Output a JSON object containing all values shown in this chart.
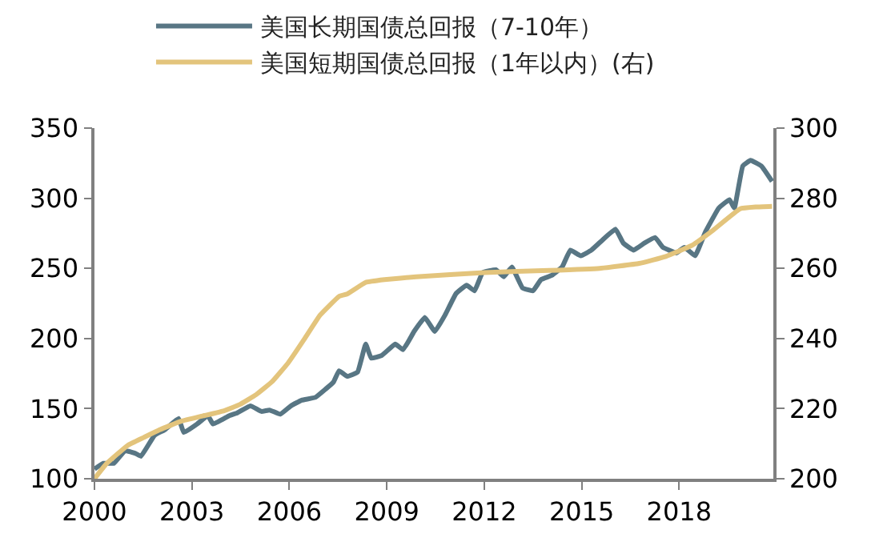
{
  "chart_data": {
    "type": "line",
    "legend": "top",
    "marker": "none",
    "line_style": "solid",
    "xlim": [
      2000,
      2020.9
    ],
    "xticks": [
      2000,
      2003,
      2006,
      2009,
      2012,
      2015,
      2018
    ],
    "ylim": [
      100,
      350
    ],
    "yticks": [
      100,
      150,
      200,
      250,
      300,
      350
    ],
    "y2lim": [
      200,
      300
    ],
    "y2ticks": [
      200,
      220,
      240,
      260,
      280,
      300
    ],
    "series": [
      {
        "name": "美国长期国债总回报（7-10年）",
        "color": "#587684",
        "x": [
          2000,
          2000.28,
          2000.6,
          2000.94,
          2001.27,
          2001.43,
          2001.85,
          2002.17,
          2002.59,
          2002.75,
          2003.16,
          2003.49,
          2003.65,
          2004.15,
          2004.4,
          2004.8,
          2005.14,
          2005.39,
          2005.72,
          2006.05,
          2006.38,
          2006.8,
          2007.12,
          2007.36,
          2007.53,
          2007.78,
          2008.1,
          2008.35,
          2008.52,
          2008.85,
          2009.26,
          2009.5,
          2009.84,
          2010.17,
          2010.48,
          2010.8,
          2011.13,
          2011.46,
          2011.7,
          2011.95,
          2012.36,
          2012.6,
          2012.85,
          2013.18,
          2013.5,
          2013.75,
          2014.08,
          2014.4,
          2014.65,
          2014.97,
          2015.3,
          2015.63,
          2016.04,
          2016.28,
          2016.6,
          2016.93,
          2017.26,
          2017.5,
          2017.92,
          2018.16,
          2018.49,
          2018.81,
          2019.22,
          2019.55,
          2019.7,
          2019.96,
          2020.2,
          2020.53,
          2020.86
        ],
        "values": [
          107,
          111,
          111,
          120,
          118,
          116,
          131,
          135,
          143,
          133,
          139,
          145,
          139,
          145,
          147,
          152,
          148,
          149,
          146,
          152,
          156,
          158,
          164,
          169,
          177,
          173,
          176,
          196,
          186,
          188,
          196,
          192,
          205,
          215,
          205,
          217,
          232,
          238,
          234,
          247,
          249,
          244,
          251,
          236,
          234,
          242,
          245,
          251,
          263,
          259,
          263,
          270,
          278,
          268,
          263,
          268,
          272,
          265,
          261,
          265,
          259,
          276,
          293,
          299,
          293,
          323,
          327,
          323,
          312
        ]
      },
      {
        "name": "美国短期国债总回报（1年以内）(右)",
        "color": "#e3c47c",
        "axis": "y2",
        "x": [
          2000,
          2000.36,
          2001.02,
          2001.52,
          2002.01,
          2002.67,
          2003.33,
          2003.99,
          2004.48,
          2004.98,
          2005.47,
          2005.96,
          2006.46,
          2006.95,
          2007.53,
          2007.78,
          2008.35,
          2008.93,
          2009.9,
          2012,
          2014,
          2015.55,
          2016.77,
          2017.59,
          2018.4,
          2019.06,
          2019.88,
          2020.37,
          2020.86
        ],
        "values": [
          200,
          204.2,
          209.5,
          211.8,
          214,
          216.4,
          217.9,
          219.4,
          221.2,
          224,
          227.7,
          233,
          239.8,
          246.7,
          252,
          252.7,
          256,
          256.8,
          257.6,
          258.8,
          259.4,
          260,
          261.4,
          263.4,
          266.6,
          271,
          277,
          277.5,
          277.7
        ]
      }
    ]
  }
}
